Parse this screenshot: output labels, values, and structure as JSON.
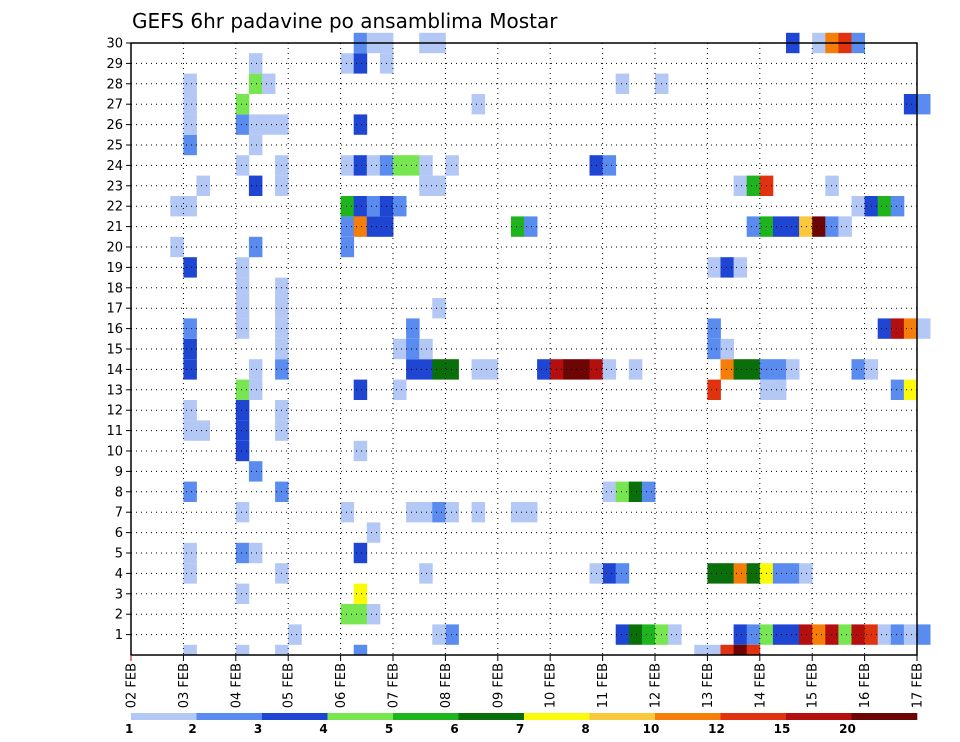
{
  "chart_data": {
    "type": "heatmap",
    "title": "GEFS 6hr padavine po ansamblima Mostar",
    "xlabel": "",
    "ylabel": "",
    "x_ticks": [
      "02 FEB",
      "03 FEB",
      "04 FEB",
      "05 FEB",
      "06 FEB",
      "07 FEB",
      "08 FEB",
      "09 FEB",
      "10 FEB",
      "11 FEB",
      "12 FEB",
      "13 FEB",
      "14 FEB",
      "15 FEB",
      "16 FEB",
      "17 FEB"
    ],
    "y_ticks": [
      "1",
      "2",
      "3",
      "4",
      "5",
      "6",
      "7",
      "8",
      "9",
      "10",
      "11",
      "12",
      "13",
      "14",
      "15",
      "16",
      "17",
      "18",
      "19",
      "20",
      "21",
      "22",
      "23",
      "24",
      "25",
      "26",
      "27",
      "28",
      "29",
      "30"
    ],
    "grid": true,
    "colorbar": {
      "labels": [
        "1",
        "2",
        "3",
        "4",
        "5",
        "6",
        "7",
        "8",
        "10",
        "12",
        "15",
        "20"
      ],
      "colors": [
        "#b4c8f5",
        "#5a8cf0",
        "#1e46d2",
        "#78e650",
        "#1eb41e",
        "#0a6e0a",
        "#fafa0a",
        "#fac83c",
        "#f57d0a",
        "#e1320f",
        "#b40f0f",
        "#6e0505"
      ]
    },
    "cells_legend": "each cell = [day offset from 02 FEB (6h steps of 0.25), ensemble member, colour class 1-12]",
    "cells": [
      [
        9.25,
        1,
        3
      ],
      [
        9.5,
        1,
        6
      ],
      [
        9.75,
        1,
        5
      ],
      [
        10.0,
        1,
        4
      ],
      [
        10.25,
        1,
        1
      ],
      [
        11.5,
        1,
        3
      ],
      [
        11.75,
        1,
        2
      ],
      [
        12.0,
        1,
        4
      ],
      [
        12.25,
        1,
        3
      ],
      [
        12.5,
        1,
        3
      ],
      [
        12.75,
        1,
        11
      ],
      [
        13.0,
        1,
        9
      ],
      [
        13.25,
        1,
        11
      ],
      [
        13.5,
        1,
        4
      ],
      [
        13.75,
        1,
        11
      ],
      [
        14.0,
        1,
        10
      ],
      [
        14.25,
        1,
        1
      ],
      [
        14.5,
        1,
        2
      ],
      [
        14.75,
        1,
        1
      ],
      [
        15.0,
        1,
        2
      ],
      [
        6.0,
        1,
        2
      ],
      [
        5.75,
        1,
        1
      ],
      [
        3.0,
        1,
        1
      ],
      [
        4.0,
        2,
        4
      ],
      [
        4.25,
        2,
        4
      ],
      [
        4.5,
        2,
        1
      ],
      [
        4.25,
        3,
        7
      ],
      [
        2.0,
        3,
        1
      ],
      [
        11.0,
        4,
        6
      ],
      [
        11.25,
        4,
        6
      ],
      [
        11.5,
        4,
        9
      ],
      [
        11.75,
        4,
        6
      ],
      [
        12.0,
        4,
        7
      ],
      [
        12.25,
        4,
        2
      ],
      [
        12.5,
        4,
        2
      ],
      [
        12.75,
        4,
        1
      ],
      [
        9.0,
        4,
        3
      ],
      [
        8.75,
        4,
        1
      ],
      [
        9.25,
        4,
        2
      ],
      [
        1.0,
        4,
        1
      ],
      [
        2.75,
        4,
        1
      ],
      [
        5.5,
        4,
        1
      ],
      [
        1.0,
        5,
        1
      ],
      [
        2.0,
        5,
        2
      ],
      [
        2.25,
        5,
        1
      ],
      [
        4.25,
        5,
        3
      ],
      [
        4.5,
        6,
        1
      ],
      [
        2.0,
        7,
        1
      ],
      [
        4.0,
        7,
        1
      ],
      [
        5.25,
        7,
        1
      ],
      [
        5.5,
        7,
        1
      ],
      [
        5.75,
        7,
        2
      ],
      [
        6.0,
        7,
        1
      ],
      [
        6.5,
        7,
        1
      ],
      [
        7.25,
        7,
        1
      ],
      [
        7.5,
        7,
        1
      ],
      [
        1.0,
        8,
        2
      ],
      [
        2.75,
        8,
        2
      ],
      [
        9.0,
        8,
        1
      ],
      [
        9.25,
        8,
        4
      ],
      [
        9.5,
        8,
        6
      ],
      [
        9.75,
        8,
        2
      ],
      [
        2.25,
        9,
        2
      ],
      [
        2.0,
        10,
        3
      ],
      [
        4.25,
        10,
        1
      ],
      [
        1.0,
        11,
        1
      ],
      [
        1.25,
        11,
        1
      ],
      [
        2.0,
        11,
        3
      ],
      [
        2.75,
        11,
        1
      ],
      [
        1.0,
        12,
        1
      ],
      [
        2.0,
        12,
        3
      ],
      [
        2.75,
        12,
        1
      ],
      [
        2.0,
        13,
        4
      ],
      [
        2.25,
        13,
        1
      ],
      [
        4.25,
        13,
        3
      ],
      [
        5.0,
        13,
        1
      ],
      [
        11.0,
        13,
        10
      ],
      [
        12.0,
        13,
        1
      ],
      [
        12.25,
        13,
        1
      ],
      [
        14.5,
        13,
        2
      ],
      [
        14.75,
        13,
        7
      ],
      [
        1.0,
        14,
        3
      ],
      [
        2.25,
        14,
        1
      ],
      [
        2.75,
        14,
        2
      ],
      [
        5.25,
        14,
        3
      ],
      [
        5.5,
        14,
        3
      ],
      [
        5.75,
        14,
        6
      ],
      [
        6.0,
        14,
        6
      ],
      [
        6.5,
        14,
        1
      ],
      [
        6.75,
        14,
        1
      ],
      [
        7.75,
        14,
        3
      ],
      [
        8.0,
        14,
        11
      ],
      [
        8.25,
        14,
        12
      ],
      [
        8.5,
        14,
        12
      ],
      [
        8.75,
        14,
        11
      ],
      [
        9.0,
        14,
        1
      ],
      [
        9.5,
        14,
        1
      ],
      [
        11.25,
        14,
        9
      ],
      [
        11.5,
        14,
        6
      ],
      [
        11.75,
        14,
        6
      ],
      [
        12.0,
        14,
        2
      ],
      [
        12.25,
        14,
        2
      ],
      [
        12.5,
        14,
        1
      ],
      [
        13.75,
        14,
        2
      ],
      [
        14.0,
        14,
        1
      ],
      [
        1.0,
        15,
        3
      ],
      [
        2.75,
        15,
        1
      ],
      [
        5.0,
        15,
        1
      ],
      [
        5.25,
        15,
        2
      ],
      [
        5.5,
        15,
        1
      ],
      [
        11.0,
        15,
        2
      ],
      [
        11.25,
        15,
        1
      ],
      [
        1.0,
        16,
        2
      ],
      [
        2.0,
        16,
        1
      ],
      [
        2.75,
        16,
        1
      ],
      [
        5.25,
        16,
        2
      ],
      [
        11.0,
        16,
        2
      ],
      [
        14.25,
        16,
        3
      ],
      [
        14.5,
        16,
        11
      ],
      [
        14.75,
        16,
        9
      ],
      [
        15.0,
        16,
        1
      ],
      [
        2.0,
        17,
        1
      ],
      [
        2.75,
        17,
        1
      ],
      [
        5.75,
        17,
        1
      ],
      [
        2.0,
        18,
        1
      ],
      [
        2.75,
        18,
        1
      ],
      [
        1.0,
        19,
        3
      ],
      [
        2.0,
        19,
        1
      ],
      [
        11.0,
        19,
        1
      ],
      [
        11.25,
        19,
        3
      ],
      [
        11.5,
        19,
        1
      ],
      [
        0.75,
        20,
        1
      ],
      [
        2.25,
        20,
        2
      ],
      [
        4.0,
        20,
        2
      ],
      [
        4.0,
        21,
        2
      ],
      [
        4.25,
        21,
        9
      ],
      [
        4.5,
        21,
        3
      ],
      [
        4.75,
        21,
        3
      ],
      [
        7.25,
        21,
        5
      ],
      [
        7.5,
        21,
        2
      ],
      [
        11.75,
        21,
        2
      ],
      [
        12.0,
        21,
        5
      ],
      [
        12.25,
        21,
        3
      ],
      [
        12.5,
        21,
        3
      ],
      [
        12.75,
        21,
        8
      ],
      [
        13.0,
        21,
        12
      ],
      [
        13.25,
        21,
        2
      ],
      [
        13.5,
        21,
        1
      ],
      [
        0.75,
        22,
        1
      ],
      [
        1.0,
        22,
        1
      ],
      [
        4.0,
        22,
        5
      ],
      [
        4.25,
        22,
        3
      ],
      [
        4.5,
        22,
        2
      ],
      [
        4.75,
        22,
        3
      ],
      [
        5.0,
        22,
        2
      ],
      [
        13.75,
        22,
        1
      ],
      [
        14.0,
        22,
        3
      ],
      [
        14.25,
        22,
        5
      ],
      [
        14.5,
        22,
        2
      ],
      [
        1.25,
        23,
        1
      ],
      [
        2.25,
        23,
        3
      ],
      [
        2.75,
        23,
        1
      ],
      [
        5.5,
        23,
        1
      ],
      [
        5.75,
        23,
        1
      ],
      [
        11.5,
        23,
        1
      ],
      [
        11.75,
        23,
        5
      ],
      [
        12.0,
        23,
        10
      ],
      [
        13.25,
        23,
        1
      ],
      [
        2.0,
        24,
        1
      ],
      [
        2.75,
        24,
        1
      ],
      [
        4.0,
        24,
        1
      ],
      [
        4.25,
        24,
        3
      ],
      [
        4.5,
        24,
        1
      ],
      [
        4.75,
        24,
        2
      ],
      [
        5.0,
        24,
        4
      ],
      [
        5.25,
        24,
        4
      ],
      [
        5.5,
        24,
        1
      ],
      [
        6.0,
        24,
        1
      ],
      [
        8.75,
        24,
        3
      ],
      [
        9.0,
        24,
        2
      ],
      [
        1.0,
        25,
        2
      ],
      [
        2.25,
        25,
        1
      ],
      [
        1.0,
        26,
        1
      ],
      [
        2.0,
        26,
        2
      ],
      [
        2.25,
        26,
        1
      ],
      [
        2.5,
        26,
        1
      ],
      [
        2.75,
        26,
        1
      ],
      [
        4.25,
        26,
        3
      ],
      [
        1.0,
        27,
        1
      ],
      [
        2.0,
        27,
        4
      ],
      [
        6.5,
        27,
        1
      ],
      [
        14.75,
        27,
        3
      ],
      [
        15.0,
        27,
        2
      ],
      [
        1.0,
        28,
        1
      ],
      [
        2.25,
        28,
        4
      ],
      [
        2.5,
        28,
        1
      ],
      [
        9.25,
        28,
        1
      ],
      [
        10.0,
        28,
        1
      ],
      [
        2.25,
        29,
        1
      ],
      [
        4.0,
        29,
        1
      ],
      [
        4.25,
        29,
        3
      ],
      [
        4.75,
        29,
        1
      ],
      [
        4.25,
        30,
        2
      ],
      [
        4.5,
        30,
        1
      ],
      [
        4.75,
        30,
        1
      ],
      [
        5.5,
        30,
        1
      ],
      [
        5.75,
        30,
        1
      ],
      [
        12.5,
        30,
        3
      ],
      [
        13.0,
        30,
        1
      ],
      [
        13.25,
        30,
        9
      ],
      [
        13.5,
        30,
        10
      ],
      [
        13.75,
        30,
        2
      ],
      [
        1.0,
        0,
        1
      ],
      [
        2.0,
        0,
        1
      ],
      [
        2.75,
        0,
        1
      ],
      [
        4.25,
        0,
        2
      ],
      [
        10.75,
        0,
        1
      ],
      [
        11.0,
        0,
        1
      ],
      [
        11.25,
        0,
        10
      ],
      [
        11.5,
        0,
        12
      ],
      [
        11.75,
        0,
        10
      ]
    ]
  }
}
